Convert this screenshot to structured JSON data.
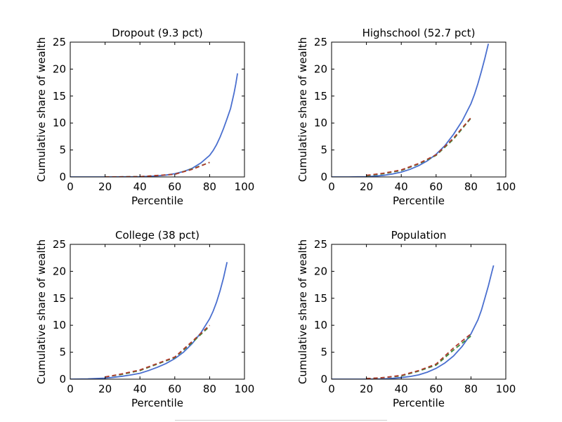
{
  "chart_data": [
    {
      "type": "line",
      "title": "Dropout (9.3 pct)",
      "xlabel": "Percentile",
      "ylabel": "Cumulative share of wealth",
      "xlim": [
        0,
        100
      ],
      "ylim": [
        0,
        25
      ],
      "xticks": [
        "0",
        "20",
        "40",
        "60",
        "80",
        "100"
      ],
      "yticks": [
        "0",
        "5",
        "10",
        "15",
        "20",
        "25"
      ],
      "series": [
        {
          "color": "#4A6FCF",
          "dash": "solid",
          "x": [
            0,
            10,
            20,
            30,
            40,
            45,
            50,
            55,
            60,
            65,
            70,
            75,
            80,
            82,
            84,
            86,
            88,
            90,
            92,
            94,
            95,
            96
          ],
          "y": [
            0,
            0,
            0,
            0.02,
            0.05,
            0.1,
            0.2,
            0.35,
            0.6,
            1.0,
            1.6,
            2.6,
            4.0,
            4.9,
            6.0,
            7.4,
            9.0,
            10.8,
            12.7,
            15.5,
            17.2,
            19.2
          ]
        },
        {
          "color": "#3A8A3A",
          "dash": "dashed",
          "x": [
            20,
            40,
            60,
            70,
            80
          ],
          "y": [
            0,
            0.05,
            0.5,
            1.5,
            2.7
          ]
        },
        {
          "color": "#B03A2E",
          "dash": "dashed",
          "x": [
            20,
            40,
            60,
            70,
            80
          ],
          "y": [
            0,
            0.05,
            0.5,
            1.4,
            2.7
          ]
        }
      ]
    },
    {
      "type": "line",
      "title": "Highschool (52.7 pct)",
      "xlabel": "Percentile",
      "ylabel": "Cumulative share of wealth",
      "xlim": [
        0,
        100
      ],
      "ylim": [
        0,
        25
      ],
      "xticks": [
        "0",
        "20",
        "40",
        "60",
        "80",
        "100"
      ],
      "yticks": [
        "0",
        "5",
        "10",
        "15",
        "20",
        "25"
      ],
      "series": [
        {
          "color": "#4A6FCF",
          "dash": "solid",
          "x": [
            0,
            10,
            20,
            25,
            30,
            35,
            40,
            45,
            50,
            55,
            60,
            65,
            70,
            75,
            80,
            82,
            84,
            86,
            88,
            90
          ],
          "y": [
            0,
            0,
            0.05,
            0.15,
            0.3,
            0.55,
            0.9,
            1.4,
            2.1,
            3.0,
            4.2,
            5.8,
            7.9,
            10.4,
            13.6,
            15.3,
            17.3,
            19.6,
            22.0,
            24.7
          ]
        },
        {
          "color": "#3A8A3A",
          "dash": "dashed",
          "x": [
            20,
            30,
            40,
            50,
            60,
            70,
            80
          ],
          "y": [
            0.2,
            0.6,
            1.2,
            2.4,
            4.0,
            7.0,
            10.9
          ]
        },
        {
          "color": "#B03A2E",
          "dash": "dashed",
          "x": [
            20,
            30,
            40,
            50,
            60,
            70,
            80
          ],
          "y": [
            0.3,
            0.7,
            1.3,
            2.5,
            4.1,
            7.2,
            11.0
          ]
        }
      ]
    },
    {
      "type": "line",
      "title": "College (38 pct)",
      "xlabel": "Percentile",
      "ylabel": "Cumulative share of wealth",
      "xlim": [
        0,
        100
      ],
      "ylim": [
        0,
        25
      ],
      "xticks": [
        "0",
        "20",
        "40",
        "60",
        "80",
        "100"
      ],
      "yticks": [
        "0",
        "5",
        "10",
        "15",
        "20",
        "25"
      ],
      "series": [
        {
          "color": "#4A6FCF",
          "dash": "solid",
          "x": [
            0,
            10,
            20,
            25,
            30,
            35,
            40,
            45,
            50,
            55,
            60,
            65,
            70,
            75,
            80,
            82,
            84,
            86,
            88,
            90
          ],
          "y": [
            0,
            0.05,
            0.2,
            0.35,
            0.55,
            0.8,
            1.1,
            1.6,
            2.2,
            2.9,
            3.8,
            5.0,
            6.6,
            8.6,
            11.2,
            12.6,
            14.3,
            16.4,
            18.8,
            21.7
          ]
        },
        {
          "color": "#3A8A3A",
          "dash": "dashed",
          "x": [
            20,
            30,
            40,
            50,
            60,
            70,
            80
          ],
          "y": [
            0.4,
            0.9,
            1.6,
            2.8,
            4.0,
            6.8,
            9.8
          ]
        },
        {
          "color": "#B03A2E",
          "dash": "dashed",
          "x": [
            20,
            30,
            40,
            50,
            60,
            70,
            80
          ],
          "y": [
            0.4,
            1.0,
            1.7,
            2.9,
            4.1,
            7.0,
            10.0
          ]
        }
      ]
    },
    {
      "type": "line",
      "title": "Population",
      "xlabel": "Percentile",
      "ylabel": "Cumulative share of wealth",
      "xlim": [
        0,
        100
      ],
      "ylim": [
        0,
        25
      ],
      "xticks": [
        "0",
        "20",
        "40",
        "60",
        "80",
        "100"
      ],
      "yticks": [
        "0",
        "5",
        "10",
        "15",
        "20",
        "25"
      ],
      "series": [
        {
          "color": "#4A6FCF",
          "dash": "solid",
          "x": [
            0,
            10,
            20,
            30,
            35,
            40,
            45,
            50,
            55,
            60,
            65,
            70,
            75,
            80,
            84,
            86,
            88,
            90,
            92,
            93
          ],
          "y": [
            0,
            0,
            0,
            0.05,
            0.15,
            0.3,
            0.5,
            0.8,
            1.3,
            2.0,
            3.0,
            4.3,
            6.1,
            8.4,
            11.0,
            12.8,
            15.0,
            17.3,
            19.9,
            21.1
          ]
        },
        {
          "color": "#3A8A3A",
          "dash": "dashed",
          "x": [
            20,
            30,
            40,
            50,
            60,
            70,
            80
          ],
          "y": [
            0.1,
            0.3,
            0.6,
            1.5,
            2.6,
            5.4,
            8.0
          ]
        },
        {
          "color": "#B03A2E",
          "dash": "dashed",
          "x": [
            20,
            30,
            40,
            50,
            60,
            70,
            80
          ],
          "y": [
            0.1,
            0.3,
            0.7,
            1.6,
            2.8,
            5.8,
            8.4
          ]
        }
      ]
    }
  ]
}
